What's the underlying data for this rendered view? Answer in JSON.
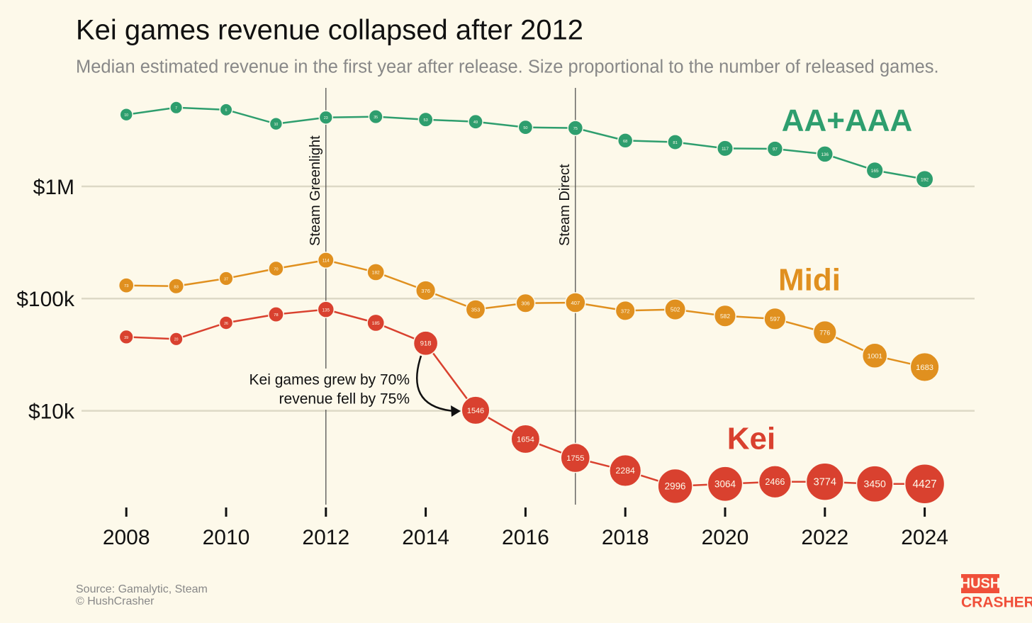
{
  "chart_data": {
    "type": "line",
    "title": "Kei games revenue collapsed after 2012",
    "subtitle": "Median estimated revenue in the first year after release. Size proportional to the number of released games.",
    "x": [
      2008,
      2009,
      2010,
      2011,
      2012,
      2013,
      2014,
      2015,
      2016,
      2017,
      2018,
      2019,
      2020,
      2021,
      2022,
      2023,
      2024
    ],
    "xlim": [
      2007.5,
      2025
    ],
    "xticks": [
      2008,
      2010,
      2012,
      2014,
      2016,
      2018,
      2020,
      2022,
      2024
    ],
    "ylim": [
      1500,
      8000000
    ],
    "yticks": [
      {
        "value": 1000000,
        "label": "$1M"
      },
      {
        "value": 100000,
        "label": "$100k"
      },
      {
        "value": 10000,
        "label": "$10k"
      }
    ],
    "log_scale": true,
    "grid": true,
    "series": [
      {
        "name": "AA+AAA",
        "color": "#2e9e6e",
        "values": [
          4360000,
          5040000,
          4820000,
          3610000,
          4110000,
          4180000,
          3940000,
          3770000,
          3360000,
          3310000,
          2560000,
          2480000,
          2180000,
          2160000,
          1940000,
          1390000,
          1160000
        ],
        "sizes": [
          10,
          7,
          6,
          10,
          23,
          35,
          53,
          49,
          50,
          75,
          68,
          81,
          117,
          97,
          136,
          165,
          192
        ]
      },
      {
        "name": "Midi",
        "color": "#e0901f",
        "values": [
          131000,
          129000,
          151000,
          185000,
          220000,
          172000,
          118000,
          80000,
          91000,
          92000,
          78000,
          80000,
          70000,
          66000,
          50000,
          31000,
          24500
        ],
        "sizes": [
          73,
          83,
          37,
          70,
          114,
          182,
          376,
          353,
          306,
          407,
          372,
          502,
          582,
          597,
          776,
          1001,
          1683
        ]
      },
      {
        "name": "Kei",
        "color": "#d9412f",
        "values": [
          45500,
          43600,
          60800,
          72300,
          80000,
          60800,
          40000,
          10100,
          5600,
          3800,
          2930,
          2130,
          2230,
          2330,
          2330,
          2230,
          2230
        ],
        "sizes": [
          39,
          20,
          26,
          78,
          135,
          185,
          918,
          1546,
          1654,
          1755,
          2284,
          2996,
          3064,
          2466,
          3774,
          3450,
          4427
        ]
      }
    ],
    "vlines": [
      {
        "x": 2012,
        "label": "Steam Greenlight"
      },
      {
        "x": 2017,
        "label": "Steam Direct"
      }
    ],
    "annotation": [
      "Kei games grew by 70%",
      "revenue fell by 75%"
    ],
    "source": [
      "Source: Gamalytic, Steam",
      "© HushCrasher"
    ],
    "logo": [
      "HUSH",
      "CRASHER"
    ]
  }
}
